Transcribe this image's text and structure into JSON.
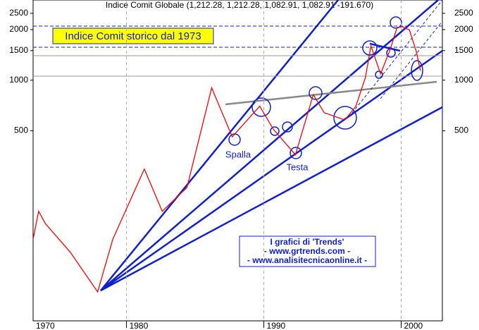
{
  "chart_data": {
    "type": "line",
    "title": "Indice Comit Globale (1,212.28, 1,212.28, 1,082.91, 1,082.91 -191.670)",
    "x": [
      1973.2,
      1973.6,
      1974.1,
      1975.9,
      1977.9,
      1979.0,
      1981.3,
      1982.6,
      1984.4,
      1986.2,
      1987.7,
      1989.7,
      1990.7,
      1992.3,
      1993.6,
      1994.4,
      1995.9,
      1996.7,
      1997.4,
      1997.8,
      1998.5,
      1999.2,
      1999.7,
      2000.1,
      2000.6,
      2001.1,
      2001.4
    ],
    "series": [
      {
        "color": "#ff0000",
        "values": [
          113,
          166,
          140,
          95,
          55,
          113,
          296,
          166,
          230,
          900,
          460,
          700,
          510,
          360,
          820,
          640,
          580,
          700,
          1040,
          1600,
          1090,
          1520,
          2060,
          2080,
          1990,
          1480,
          1140
        ]
      }
    ],
    "xlim": [
      1973.2,
      2003.0
    ],
    "xticks": [
      1970,
      1980,
      1990,
      2000
    ],
    "ylim": [
      37,
      3000
    ],
    "yticks": [
      500,
      1000,
      1500,
      2000,
      2500
    ],
    "log_y": true,
    "grid": true,
    "annotations": [
      "Indice Comit storico dal 1973",
      "Spalla",
      "Testa",
      "I grafici di 'Trends'",
      "- www.grtrends.com -",
      "- www.analisitecnicaonline.it -"
    ]
  }
}
